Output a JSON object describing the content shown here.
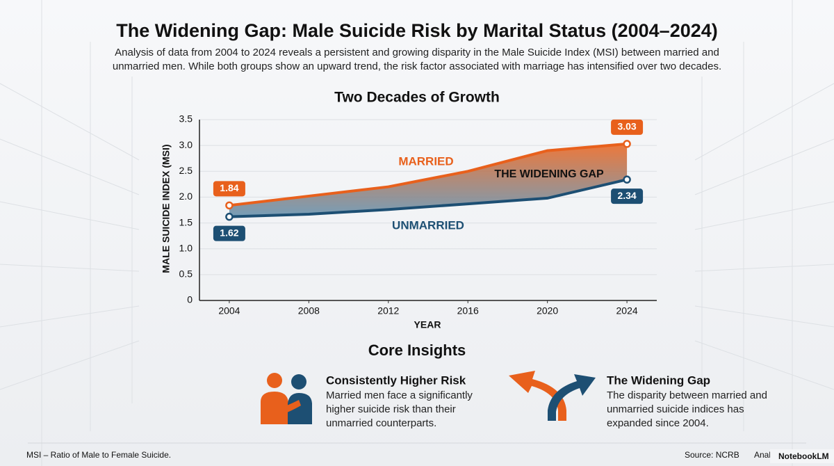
{
  "header": {
    "title": "The Widening Gap: Male Suicide Risk by Marital Status (2004–2024)",
    "subtitle": "Analysis of data from 2004 to 2024 reveals a persistent and growing disparity in the Male Suicide Index (MSI) between married and unmarried men. While both groups show an upward trend, the risk factor associated with marriage has intensified over two decades."
  },
  "chart_data": {
    "type": "line",
    "title": "Two Decades of Growth",
    "x_label": "YEAR",
    "y_label": "MALE SUICIDE INDEX (MSI)",
    "x": [
      2004,
      2008,
      2012,
      2016,
      2020,
      2024
    ],
    "series": [
      {
        "name": "MARRIED",
        "color": "#e8601c",
        "values": [
          1.84,
          2.02,
          2.2,
          2.5,
          2.9,
          3.03
        ]
      },
      {
        "name": "UNMARRIED",
        "color": "#1d4f73",
        "values": [
          1.62,
          1.67,
          1.76,
          1.87,
          1.98,
          2.34
        ]
      }
    ],
    "annotation": "THE WIDENING GAP",
    "xlim": [
      2002.5,
      2025.5
    ],
    "ylim": [
      0,
      3.5
    ],
    "xticks": [
      2004,
      2008,
      2012,
      2016,
      2020,
      2024
    ],
    "yticks": [
      0,
      0.5,
      {
        "value": 1,
        "label": "1.0"
      },
      1.5,
      {
        "value": 2,
        "label": "2.0"
      },
      2.5,
      {
        "value": 3,
        "label": "3.0"
      },
      3.5
    ],
    "grid": true
  },
  "insights": {
    "title": "Core Insights",
    "items": [
      {
        "title": "Consistently Higher Risk",
        "text": "Married men face a significantly higher suicide risk than their unmarried counterparts."
      },
      {
        "title": "The Widening Gap",
        "text": "The disparity between married and unmarried suicide indices has expanded since 2004."
      }
    ]
  },
  "footer": {
    "note": "MSI – Ratio of Male to Female Suicide.",
    "source": "Source: NCRB",
    "analysis": "Analysis: MWT",
    "brand": "NotebookLM"
  }
}
